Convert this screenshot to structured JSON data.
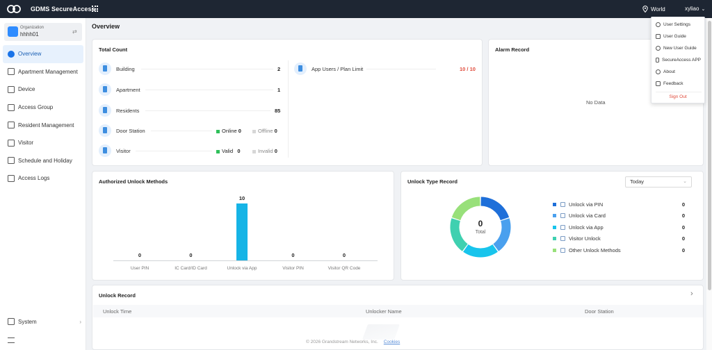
{
  "app": {
    "title": "GDMS SecureAccess"
  },
  "header": {
    "region": "World",
    "username": "xyliao"
  },
  "organization": {
    "label": "Organization",
    "name": "hhhh01"
  },
  "sidebar": {
    "items": [
      {
        "label": "Overview",
        "icon": "pie-chart-icon",
        "active": true
      },
      {
        "label": "Apartment Management",
        "icon": "building-icon"
      },
      {
        "label": "Device",
        "icon": "device-icon"
      },
      {
        "label": "Access Group",
        "icon": "access-group-icon"
      },
      {
        "label": "Resident Management",
        "icon": "resident-icon"
      },
      {
        "label": "Visitor",
        "icon": "visitor-icon"
      },
      {
        "label": "Schedule and Holiday",
        "icon": "calendar-icon"
      },
      {
        "label": "Access Logs",
        "icon": "log-icon"
      }
    ],
    "system": "System"
  },
  "page": {
    "title": "Overview"
  },
  "total_count": {
    "title": "Total Count",
    "building": {
      "label": "Building",
      "value": "2"
    },
    "apartment": {
      "label": "Apartment",
      "value": "1"
    },
    "residents": {
      "label": "Residents",
      "value": "85"
    },
    "door_station": {
      "label": "Door Station",
      "online_label": "Online",
      "online": "0",
      "offline_label": "Offline",
      "offline": "0"
    },
    "visitor": {
      "label": "Visitor",
      "valid_label": "Valid",
      "valid": "0",
      "invalid_label": "Invalid",
      "invalid": "0"
    },
    "app_users": {
      "label": "App Users / Plan Limit",
      "value": "10 / 10"
    }
  },
  "alarm_record": {
    "title": "Alarm Record",
    "empty": "No Data"
  },
  "authorized_unlock": {
    "title": "Authorized Unlock Methods"
  },
  "chart_data": {
    "type": "bar",
    "title": "Authorized Unlock Methods",
    "categories": [
      "User PIN",
      "IC Card/ID Card",
      "Unlock via App",
      "Visitor PIN",
      "Visitor QR Code"
    ],
    "values": [
      0,
      0,
      10,
      0,
      0
    ],
    "value_labels": [
      "0",
      "0",
      "10",
      "0",
      "0"
    ],
    "ylim": [
      0,
      10
    ],
    "grid": false,
    "colors": {
      "bar": "#16b4e6"
    }
  },
  "unlock_type_record": {
    "title": "Unlock Type Record",
    "filter": "Today",
    "total_value": "0",
    "total_label": "Total",
    "items": [
      {
        "label": "Unlock via PIN",
        "value": "0",
        "color": "#1e6fd9"
      },
      {
        "label": "Unlock via Card",
        "value": "0",
        "color": "#4aa0ee"
      },
      {
        "label": "Unlock via App",
        "value": "0",
        "color": "#18c4ec"
      },
      {
        "label": "Visitor Unlock",
        "value": "0",
        "color": "#3fd0b0"
      },
      {
        "label": "Other Unlock Methods",
        "value": "0",
        "color": "#98e07a"
      }
    ]
  },
  "unlock_record": {
    "title": "Unlock Record",
    "columns": [
      "Unlock Time",
      "Unlocker Name",
      "Door Station"
    ]
  },
  "footer": {
    "copyright": "© 2026 Grandstream Networks, Inc.",
    "cookies": "Cookies"
  },
  "user_menu": {
    "items": [
      {
        "label": "User Settings",
        "icon": "user-settings-icon"
      },
      {
        "label": "User Guide",
        "icon": "guide-icon"
      },
      {
        "label": "New User Guide",
        "icon": "compass-icon"
      },
      {
        "label": "SecureAccess APP",
        "icon": "phone-icon"
      },
      {
        "label": "About",
        "icon": "info-icon"
      },
      {
        "label": "Feedback",
        "icon": "feedback-icon"
      }
    ],
    "sign_out": "Sign Out"
  },
  "colors": {
    "accent": "#1a73e8",
    "topbar": "#1e2633",
    "alert": "#e04a3a",
    "online": "#2fbf5a",
    "offline": "#cccccc"
  }
}
